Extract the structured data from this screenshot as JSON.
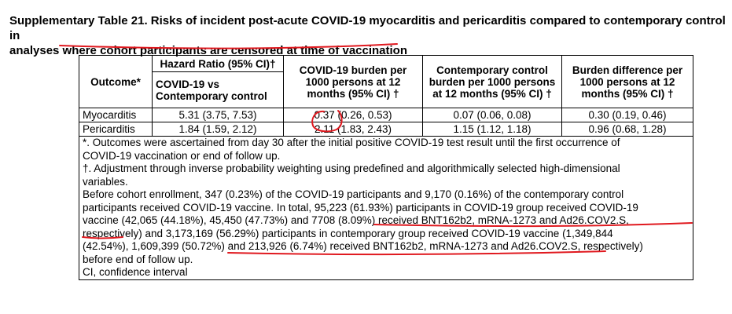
{
  "title": {
    "line1": "Supplementary Table 21. Risks of incident post-acute COVID-19 myocarditis and pericarditis compared to contemporary control in",
    "line2": "analyses where cohort participants are censored at time of vaccination"
  },
  "table": {
    "headers": {
      "outcome": "Outcome*",
      "hr_title": "Hazard Ratio (95% CI)†",
      "hr_sub": "COVID-19 vs Contemporary control",
      "covid_burden": "COVID-19 burden per 1000 persons at 12 months (95% CI) †",
      "control_burden": "Contemporary control burden per 1000 persons at 12 months (95% CI) †",
      "burden_diff": "Burden difference per 1000 persons at 12 months (95% CI) †"
    },
    "rows": [
      {
        "outcome": "Myocarditis",
        "hr": "5.31 (3.75, 7.53)",
        "covid_burden": "0.37 (0.26, 0.53)",
        "control_burden": "0.07 (0.06, 0.08)",
        "burden_diff": "0.30 (0.19, 0.46)"
      },
      {
        "outcome": "Pericarditis",
        "hr": "1.84 (1.59, 2.12)",
        "covid_burden": "2.11 (1.83, 2.43)",
        "control_burden": "1.15 (1.12, 1.18)",
        "burden_diff": "0.96 (0.68, 1.28)"
      }
    ],
    "notes": [
      "*. Outcomes were ascertained from day 30 after the initial positive COVID-19 test result until the first occurrence of",
      "COVID-19 vaccination or end of follow up.",
      "†. Adjustment through inverse probability weighting using predefined and algorithmically selected high-dimensional",
      "variables.",
      "Before cohort enrollment, 347 (0.23%) of the COVID-19 participants and 9,170 (0.16%) of the contemporary control",
      "participants received COVID-19 vaccine. In total, 95,223 (61.93%) participants in COVID-19 group received COVID-19",
      "vaccine (42,065 (44.18%), 45,450 (47.73%) and 7708 (8.09%) received BNT162b2, mRNA-1273 and Ad26.COV2.S,",
      "respectively) and 3,173,169 (56.29%) participants in contemporary group received COVID-19 vaccine (1,349,844",
      "(42.54%), 1,609,399 (50.72%) and 213,926 (6.74%) received BNT162b2, mRNA-1273 and Ad26.COV2.S, respectively)",
      "before end of follow up.",
      "CI, confidence interval"
    ]
  },
  "annotation_color": "#e0191f"
}
